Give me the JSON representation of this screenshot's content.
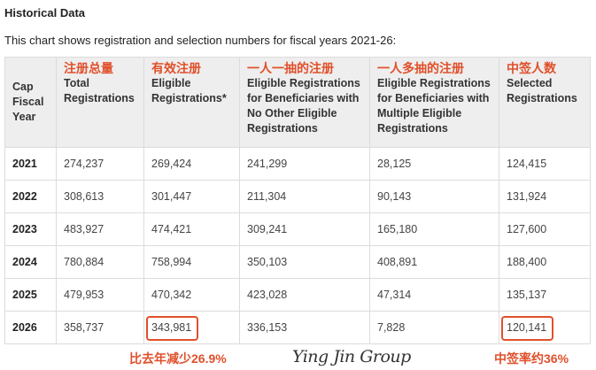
{
  "heading": "Historical Data",
  "description": "This chart shows registration and selection numbers for fiscal years 2021-26:",
  "columns": [
    {
      "label": "Cap Fiscal Year",
      "annotation": ""
    },
    {
      "label": "Total Registrations",
      "annotation": "注册总量"
    },
    {
      "label": "Eligible Registrations*",
      "annotation": "有效注册"
    },
    {
      "label": "Eligible Registrations for Beneficiaries with No Other Eligible Registrations",
      "annotation": "一人一抽的注册"
    },
    {
      "label": "Eligible Registrations for Beneficiaries with Multiple Eligible Registrations",
      "annotation": "一人多抽的注册"
    },
    {
      "label": "Selected Registrations",
      "annotation": "中签人数"
    }
  ],
  "rows": [
    [
      "2021",
      "274,237",
      "269,424",
      "241,299",
      "28,125",
      "124,415"
    ],
    [
      "2022",
      "308,613",
      "301,447",
      "211,304",
      "90,143",
      "131,924"
    ],
    [
      "2023",
      "483,927",
      "474,421",
      "309,241",
      "165,180",
      "127,600"
    ],
    [
      "2024",
      "780,884",
      "758,994",
      "350,103",
      "408,891",
      "188,400"
    ],
    [
      "2025",
      "479,953",
      "470,342",
      "423,028",
      "47,314",
      "135,137"
    ],
    [
      "2026",
      "358,737",
      "343,981",
      "336,153",
      "7,828",
      "120,141"
    ]
  ],
  "notes": {
    "eligible_change": "比去年减少26.9%",
    "selection_rate": "中签率约36%"
  },
  "watermark": "Ying Jin Group",
  "accent_color": "#e0502a"
}
